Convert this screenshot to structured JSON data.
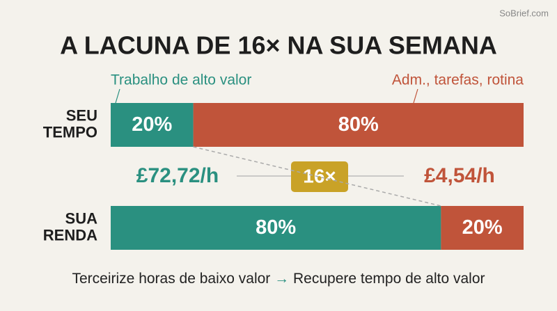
{
  "chart_data": {
    "type": "stacked-barh",
    "title": "A LACUNA DE 16× NA SUA SEMANA",
    "watermark": "SoBrief.com",
    "categories": [
      "SEU TEMPO",
      "SUA RENDA"
    ],
    "series": [
      {
        "name": "Trabalho de alto valor",
        "color": "#2a9080",
        "values": [
          20,
          80
        ],
        "value_labels": [
          "20%",
          "80%"
        ]
      },
      {
        "name": "Adm., tarefas, rotina",
        "color": "#c0543a",
        "values": [
          80,
          20
        ],
        "value_labels": [
          "80%",
          "20%"
        ]
      }
    ],
    "xlim": [
      0,
      100
    ],
    "annotations": {
      "high_rate": "£72,72/h",
      "ratio": "16×",
      "low_rate": "£4,54/h",
      "footer_left": "Terceirize horas de baixo valor",
      "footer_arrow": "→",
      "footer_right": "Recupere tempo de alto valor"
    }
  }
}
